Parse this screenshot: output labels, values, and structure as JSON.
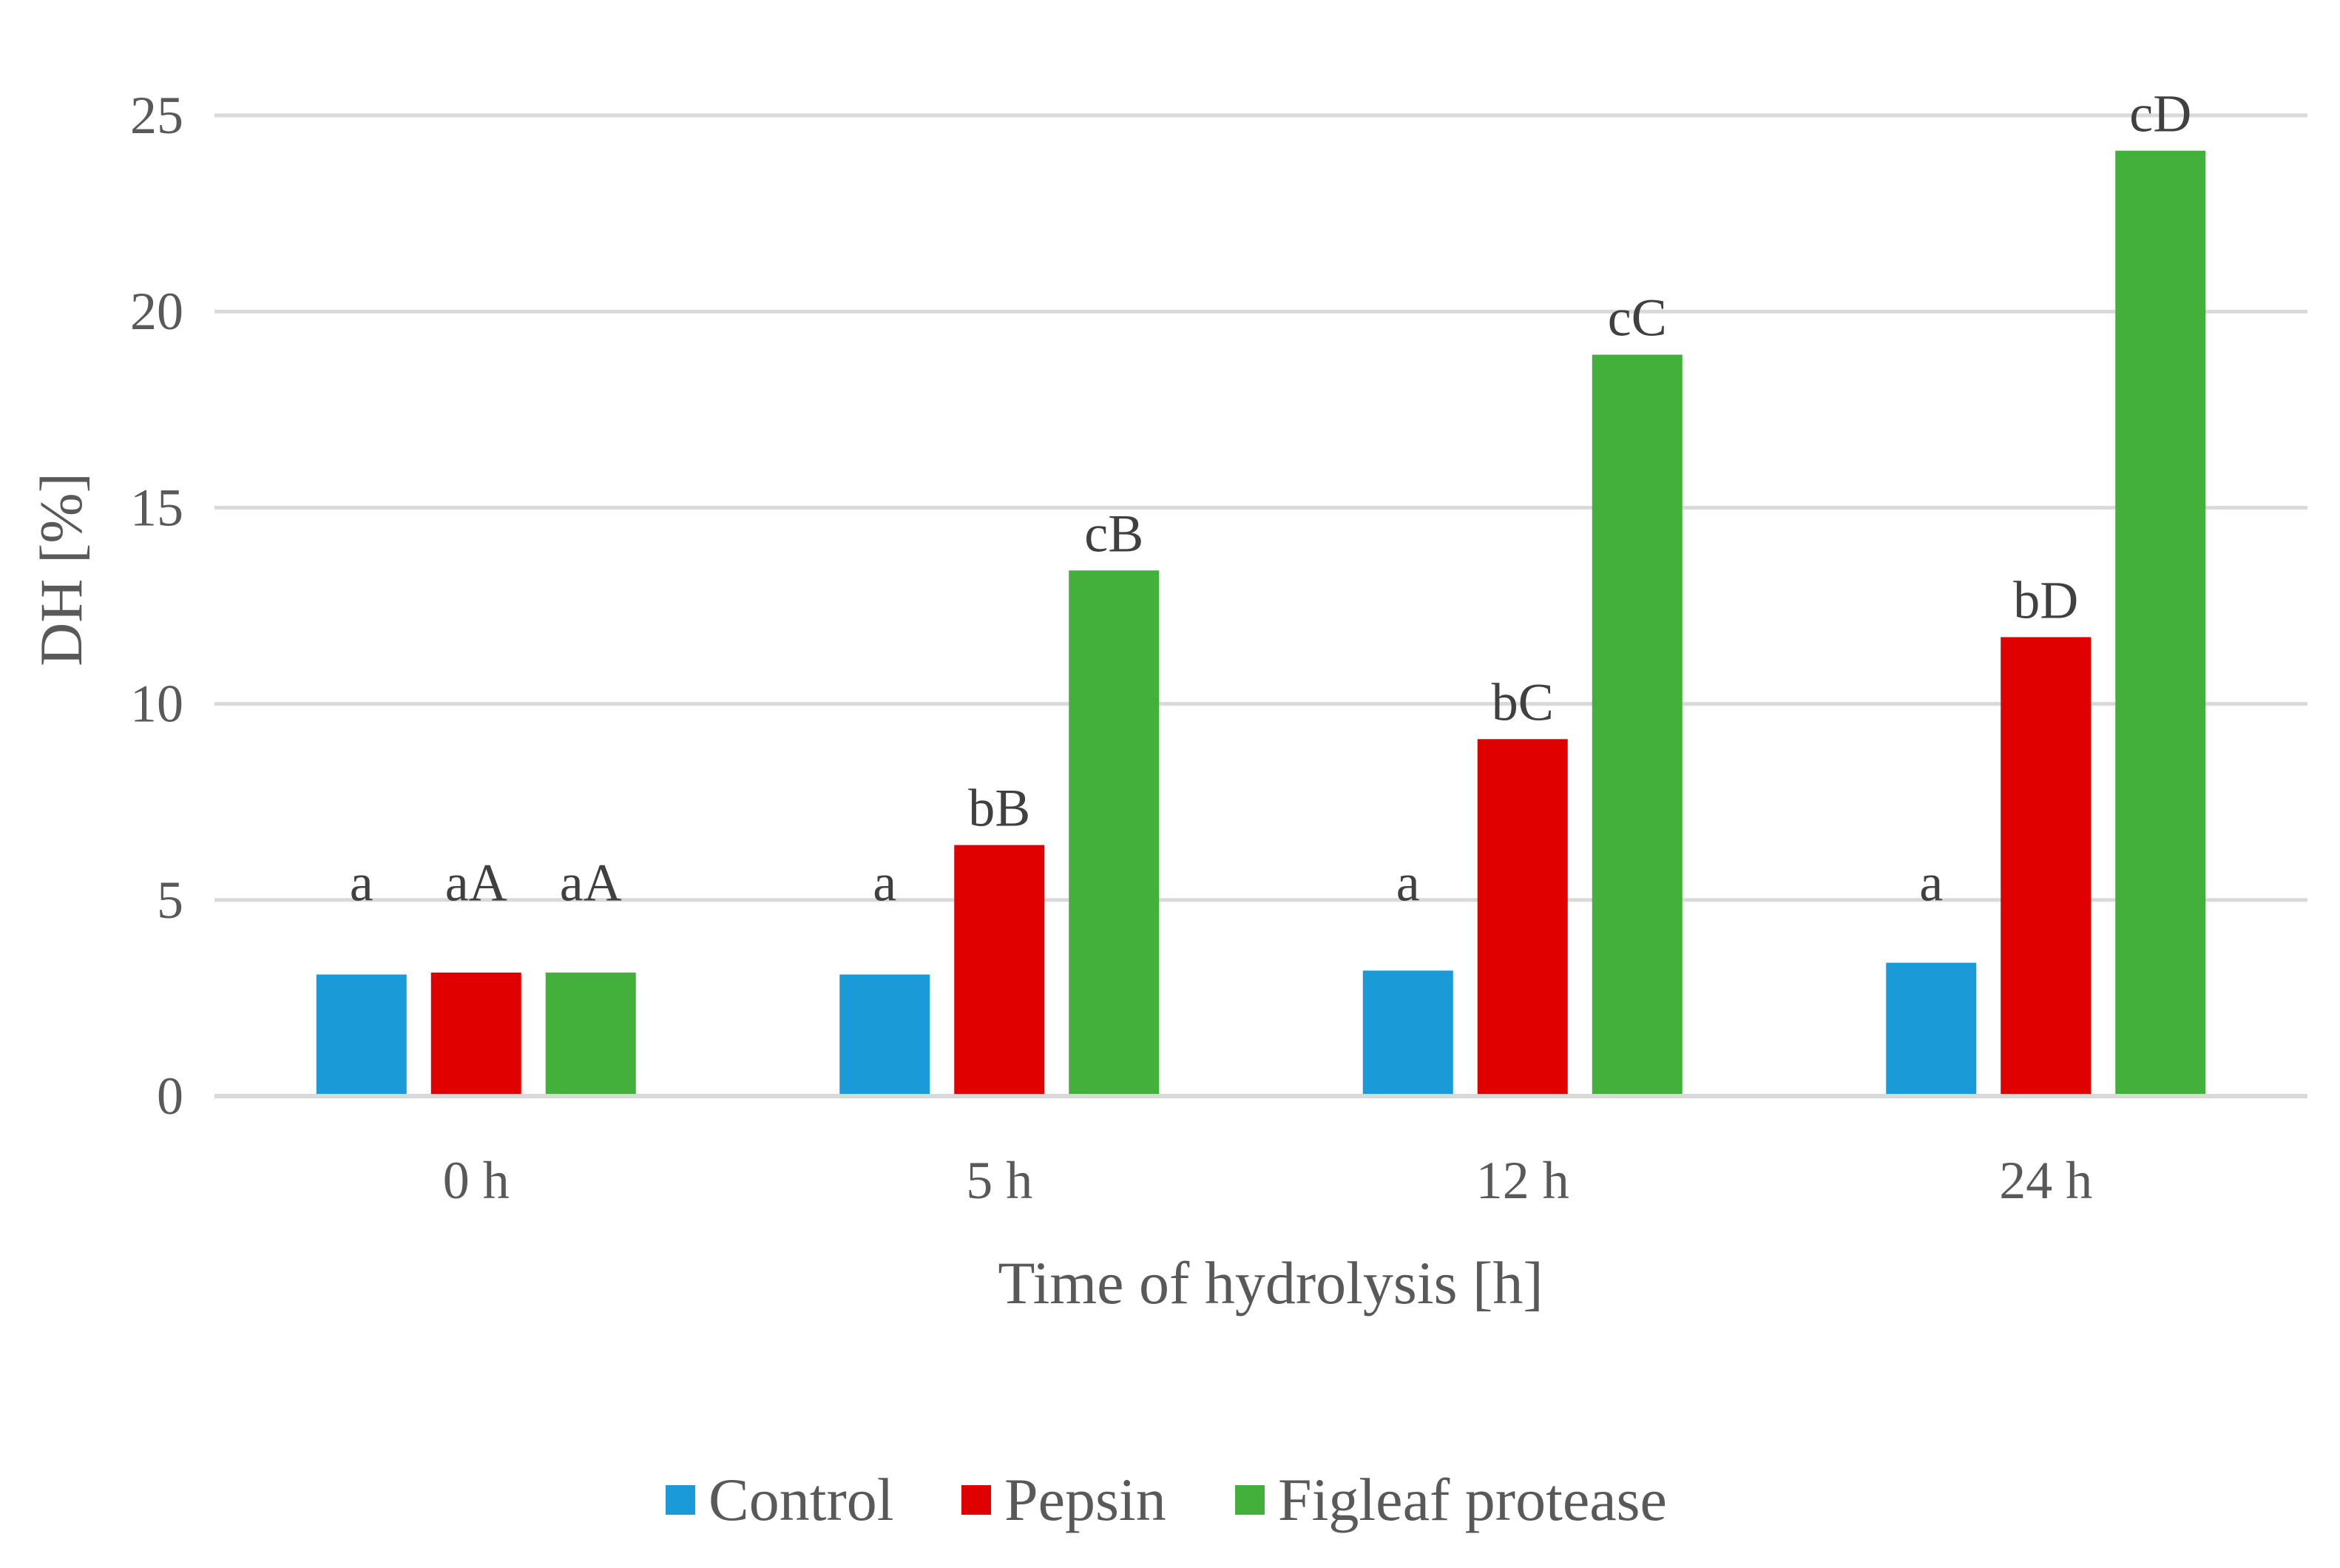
{
  "chart_data": {
    "type": "bar",
    "title": "",
    "xlabel": "Time of hydrolysis  [h]",
    "ylabel": "DH [%]",
    "ylim": [
      0,
      25
    ],
    "yticks": [
      "0",
      "5",
      "10",
      "15",
      "20",
      "25"
    ],
    "grid": true,
    "legend_position": "bottom",
    "categories": [
      "0 h",
      "5 h",
      "12 h",
      "24 h"
    ],
    "series": [
      {
        "name": "Control",
        "color": "#1a9bd7",
        "values": [
          3.1,
          3.1,
          3.2,
          3.4
        ],
        "labels": [
          "a",
          "a",
          "a",
          "a"
        ]
      },
      {
        "name": "Pepsin",
        "color": "#e00000",
        "values": [
          3.15,
          6.4,
          9.1,
          11.7
        ],
        "labels": [
          "aA",
          "bB",
          "bC",
          "bD"
        ]
      },
      {
        "name": "Figleaf protease",
        "color": "#43b03c",
        "values": [
          3.15,
          13.4,
          18.9,
          24.1
        ],
        "labels": [
          "aA",
          "cB",
          "cC",
          "cD"
        ]
      }
    ]
  }
}
